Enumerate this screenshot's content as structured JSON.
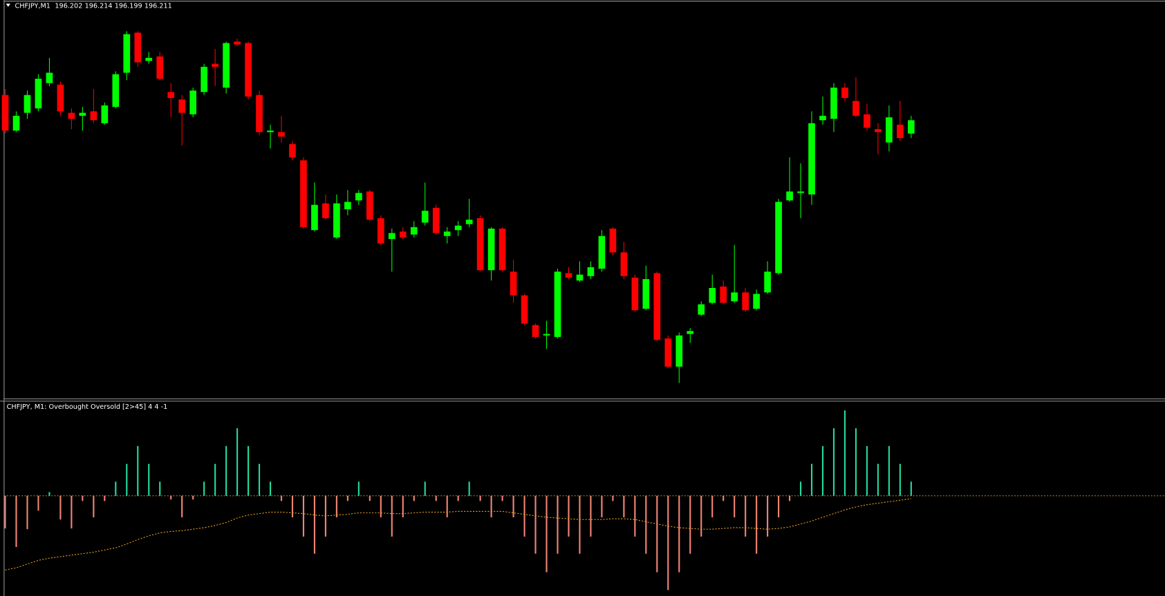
{
  "chart_data": [
    {
      "type": "candlestick",
      "title": "CHFJPY,M1",
      "up_color": "#00ff00",
      "down_color": "#ff0000",
      "open": [
        196.228,
        196.204,
        196.216,
        196.219,
        196.236,
        196.235,
        196.216,
        196.214,
        196.217,
        196.209,
        196.22,
        196.243,
        196.27,
        196.251,
        196.254,
        196.23,
        196.225,
        196.215,
        196.23,
        196.249,
        196.233,
        196.264,
        196.263,
        196.228,
        196.203,
        196.203,
        196.195,
        196.184,
        196.137,
        196.155,
        196.132,
        196.151,
        196.157,
        196.163,
        196.145,
        196.131,
        196.136,
        196.134,
        196.142,
        196.152,
        196.133,
        196.137,
        196.141,
        196.145,
        196.11,
        196.138,
        196.109,
        196.093,
        196.073,
        196.066,
        196.065,
        196.108,
        196.103,
        196.106,
        196.111,
        196.138,
        196.122,
        196.105,
        196.084,
        196.108,
        196.064,
        196.045,
        196.067,
        196.08,
        196.088,
        196.099,
        196.089,
        196.095,
        196.084,
        196.095,
        196.108,
        196.157,
        196.162,
        196.161,
        196.211,
        196.212,
        196.233,
        196.224,
        196.215,
        196.205,
        196.196,
        196.208,
        196.202
      ],
      "high": [
        196.232,
        196.217,
        196.231,
        196.242,
        196.253,
        196.237,
        196.219,
        196.22,
        196.232,
        196.223,
        196.244,
        196.271,
        196.271,
        196.257,
        196.257,
        196.236,
        196.228,
        196.233,
        196.249,
        196.259,
        196.264,
        196.266,
        196.264,
        196.231,
        196.208,
        196.214,
        196.197,
        196.186,
        196.169,
        196.161,
        196.161,
        196.164,
        196.164,
        196.164,
        196.147,
        196.138,
        196.139,
        196.143,
        196.169,
        196.154,
        196.139,
        196.143,
        196.158,
        196.147,
        196.139,
        196.139,
        196.117,
        196.094,
        196.074,
        196.076,
        196.111,
        196.112,
        196.116,
        196.116,
        196.137,
        196.139,
        196.129,
        196.107,
        196.113,
        196.109,
        196.066,
        196.068,
        196.071,
        196.089,
        196.107,
        196.103,
        196.127,
        196.098,
        196.097,
        196.116,
        196.158,
        196.186,
        196.182,
        196.217,
        196.227,
        196.236,
        196.236,
        196.24,
        196.222,
        196.209,
        196.221,
        196.224,
        196.214
      ],
      "low": [
        196.202,
        196.203,
        196.212,
        196.217,
        196.234,
        196.214,
        196.205,
        196.204,
        196.209,
        196.208,
        196.219,
        196.238,
        196.247,
        196.249,
        196.238,
        196.213,
        196.194,
        196.213,
        196.228,
        196.234,
        196.229,
        196.261,
        196.225,
        196.201,
        196.192,
        196.196,
        196.184,
        196.138,
        196.136,
        196.144,
        196.131,
        196.147,
        196.154,
        196.143,
        196.127,
        196.109,
        196.131,
        196.132,
        196.14,
        196.134,
        196.128,
        196.133,
        196.139,
        196.109,
        196.103,
        196.109,
        196.088,
        196.073,
        196.064,
        196.057,
        196.064,
        196.104,
        196.102,
        196.104,
        196.109,
        196.12,
        196.104,
        196.082,
        196.083,
        196.062,
        196.044,
        196.034,
        196.061,
        196.079,
        196.087,
        196.087,
        196.088,
        196.082,
        196.083,
        196.094,
        196.107,
        196.156,
        196.145,
        196.154,
        196.208,
        196.203,
        196.224,
        196.213,
        196.204,
        196.188,
        196.19,
        196.197,
        196.199
      ],
      "close": [
        196.204,
        196.214,
        196.228,
        196.239,
        196.243,
        196.217,
        196.212,
        196.216,
        196.211,
        196.221,
        196.242,
        196.269,
        196.25,
        196.253,
        196.239,
        196.226,
        196.216,
        196.231,
        196.247,
        196.247,
        196.263,
        196.262,
        196.227,
        196.203,
        196.204,
        196.2,
        196.186,
        196.139,
        196.154,
        196.145,
        196.155,
        196.156,
        196.162,
        196.144,
        196.128,
        196.135,
        196.132,
        196.139,
        196.15,
        196.135,
        196.136,
        196.14,
        196.144,
        196.11,
        196.138,
        196.11,
        196.093,
        196.074,
        196.065,
        196.067,
        196.109,
        196.105,
        196.107,
        196.112,
        196.133,
        196.122,
        196.106,
        196.083,
        196.104,
        196.063,
        196.045,
        196.066,
        196.069,
        196.087,
        196.098,
        196.088,
        196.095,
        196.083,
        196.094,
        196.109,
        196.156,
        196.163,
        196.163,
        196.209,
        196.214,
        196.233,
        196.226,
        196.214,
        196.206,
        196.203,
        196.213,
        196.199,
        196.211
      ]
    },
    {
      "type": "histogram-oscillator",
      "title": "CHFJPY, M1: Overbought Oversold [2>45]  4 4 -1",
      "up_color": "#24d8a0",
      "down_color": "#f08474",
      "signal_color": "#e8a020",
      "zero_line_color": "#b08a3c",
      "values": [
        -44,
        -69,
        -45,
        -20,
        5,
        -32,
        -44,
        -7,
        -29,
        -7,
        19,
        43,
        67,
        43,
        19,
        -5,
        -29,
        -5,
        19,
        43,
        67,
        91,
        67,
        43,
        19,
        -7,
        -29,
        -55,
        -78,
        -55,
        -29,
        -7,
        19,
        -7,
        -29,
        -55,
        -29,
        -7,
        19,
        -7,
        -29,
        -7,
        19,
        -7,
        -29,
        -7,
        -29,
        -55,
        -78,
        -103,
        -78,
        -55,
        -78,
        -55,
        -29,
        -7,
        -29,
        -55,
        -78,
        -103,
        -127,
        -103,
        -78,
        -55,
        -29,
        -7,
        -29,
        -55,
        -78,
        -55,
        -29,
        -7,
        19,
        43,
        67,
        91,
        115,
        91,
        67,
        43,
        67,
        43,
        19
      ],
      "signal_values": [
        -100,
        -97,
        -92,
        -87,
        -84,
        -82,
        -80,
        -78,
        -76,
        -73,
        -70,
        -65,
        -59,
        -54,
        -50,
        -48,
        -47,
        -45,
        -43,
        -40,
        -36,
        -30,
        -26,
        -24,
        -22,
        -22,
        -23,
        -24,
        -26,
        -27,
        -26,
        -25,
        -23,
        -23,
        -23,
        -24,
        -24,
        -23,
        -22,
        -22,
        -22,
        -21,
        -21,
        -21,
        -21,
        -21,
        -23,
        -25,
        -27,
        -29,
        -30,
        -31,
        -32,
        -32,
        -32,
        -31,
        -31,
        -32,
        -35,
        -38,
        -41,
        -43,
        -44,
        -45,
        -45,
        -44,
        -43,
        -43,
        -44,
        -45,
        -44,
        -42,
        -38,
        -34,
        -29,
        -24,
        -19,
        -15,
        -12,
        -10,
        -8,
        -6,
        -4
      ]
    }
  ]
}
